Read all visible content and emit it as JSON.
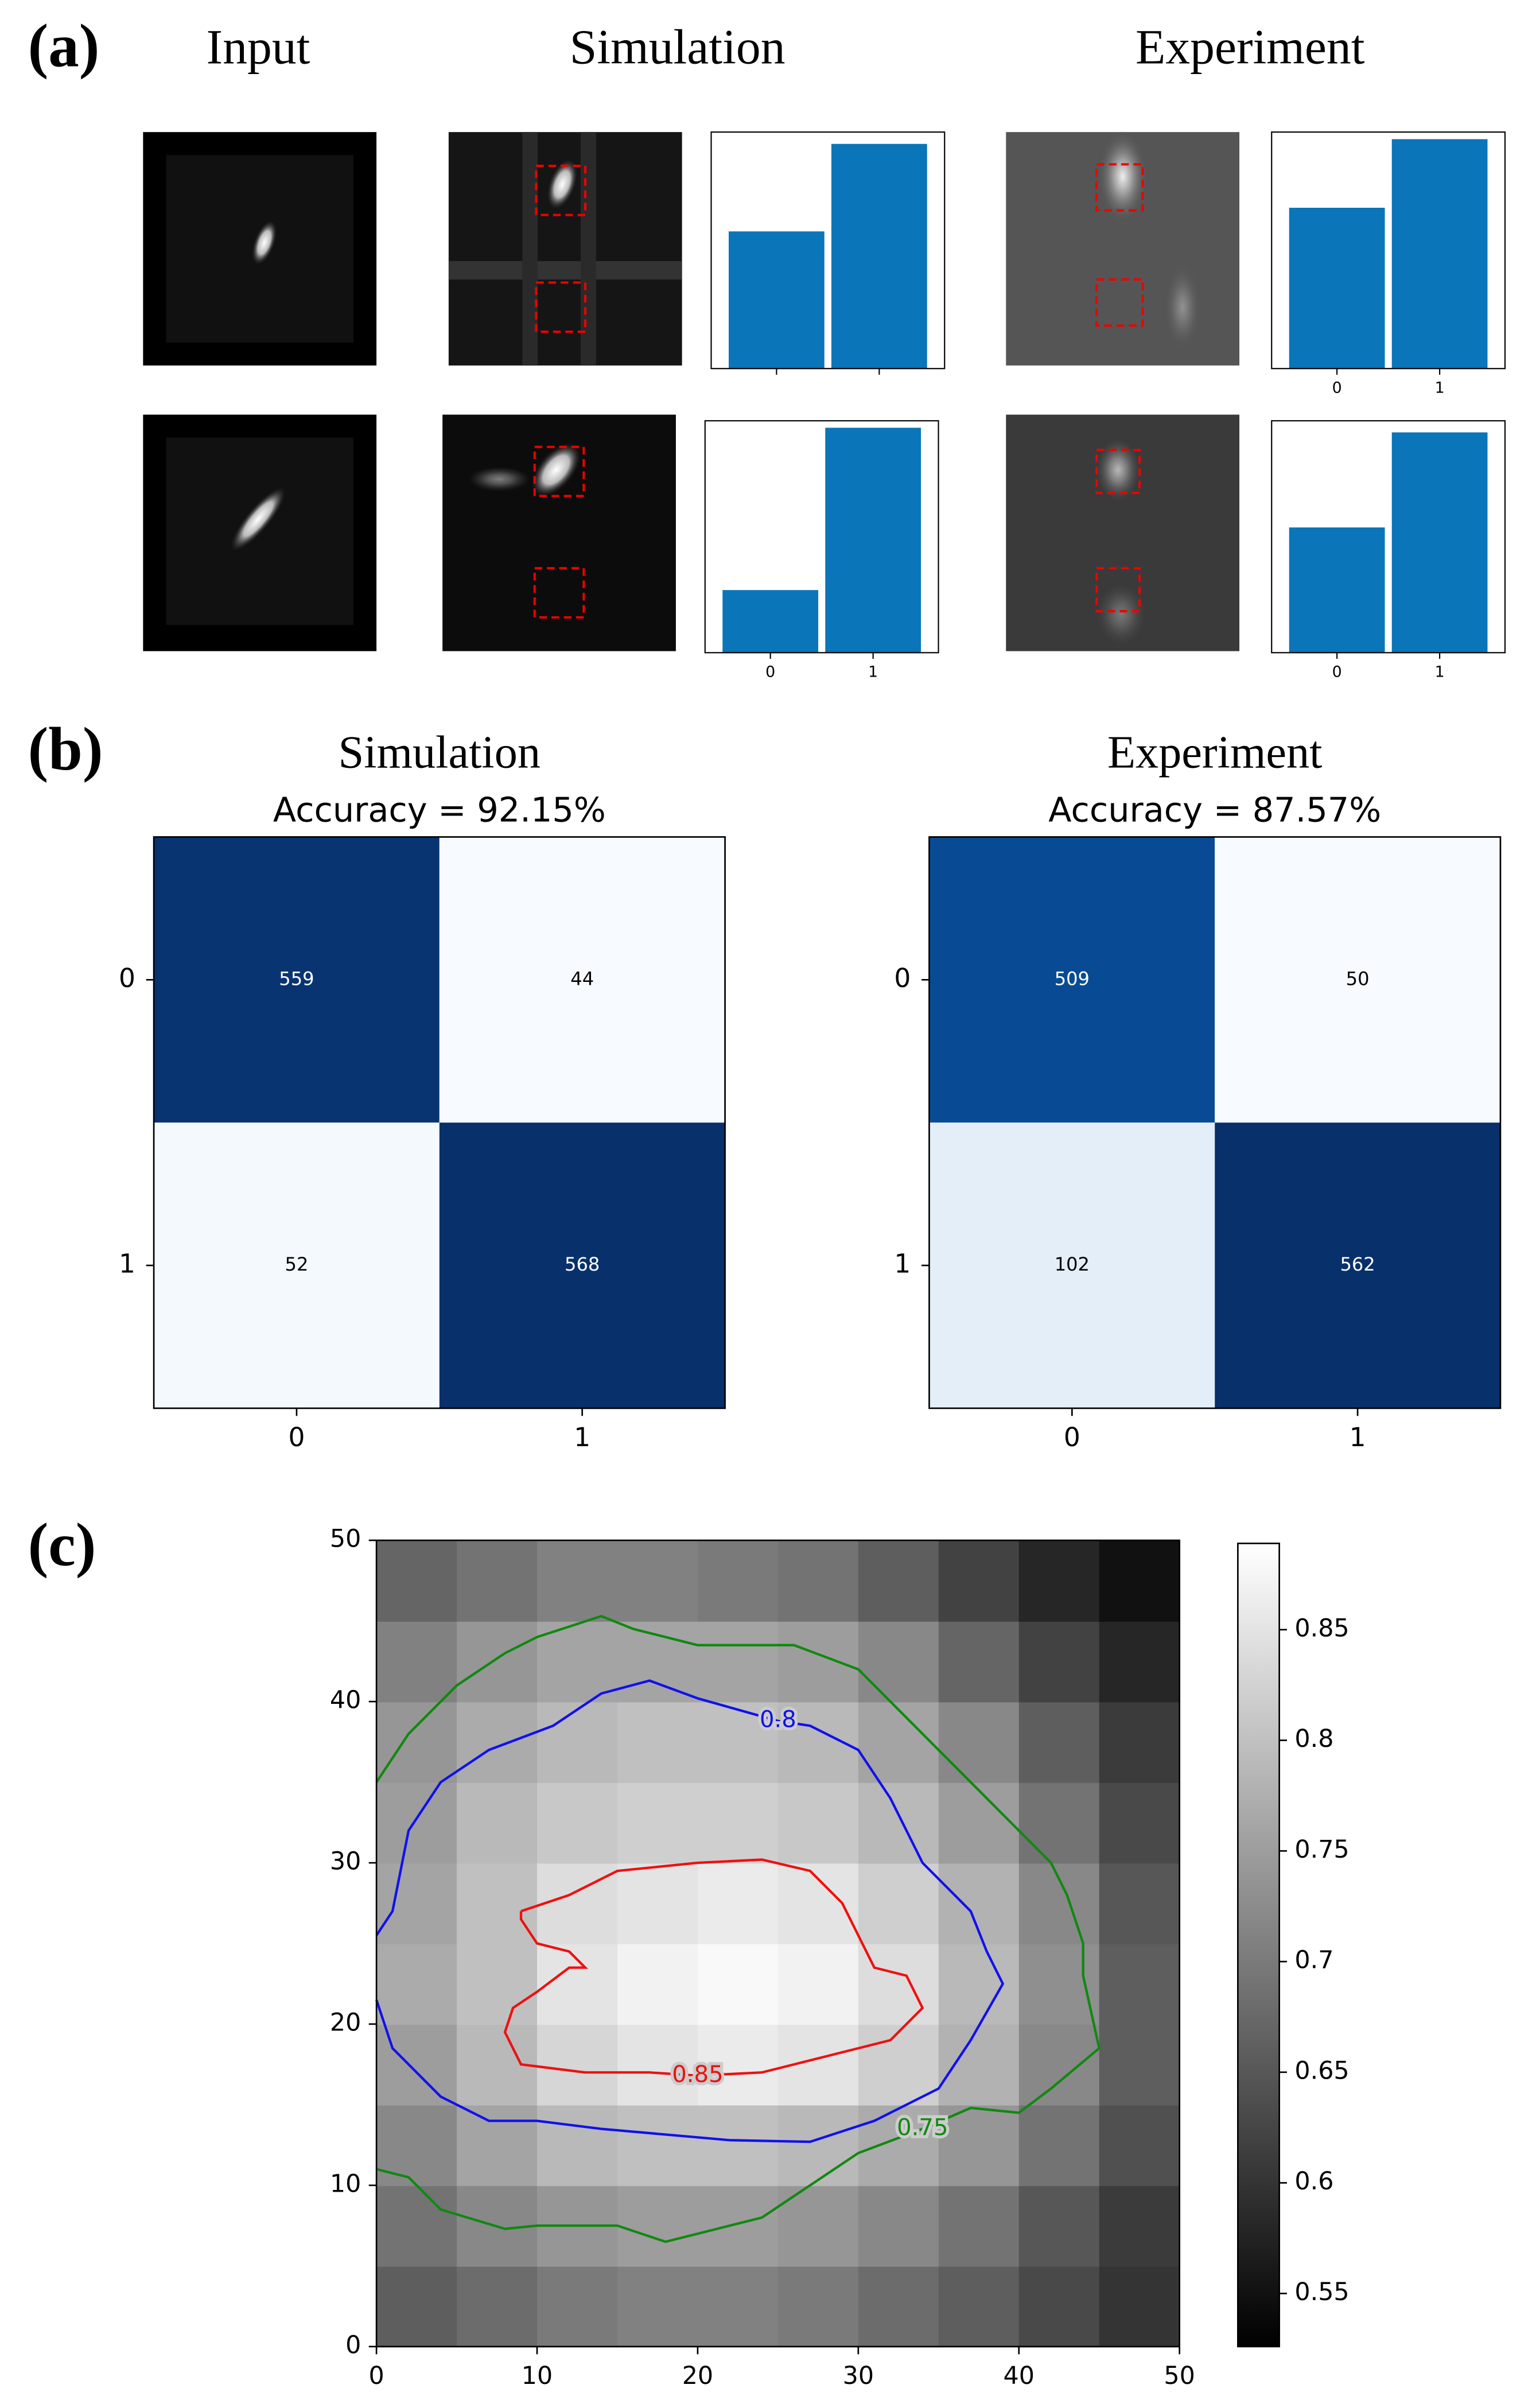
{
  "figure": {
    "panel_labels": [
      "(a)",
      "(b)",
      "(c)"
    ],
    "column_headers": [
      "Input",
      "Simulation",
      "Experiment"
    ]
  },
  "chart_data": [
    {
      "type": "bar",
      "categories": [
        null,
        null
      ],
      "values": [
        0.58,
        0.95
      ],
      "color": "#0a75b8",
      "ylim": [
        0,
        1
      ]
    },
    {
      "type": "bar",
      "categories": [
        "0",
        "1"
      ],
      "values": [
        0.68,
        0.97
      ],
      "color": "#0a75b8",
      "ylim": [
        0,
        1
      ]
    },
    {
      "type": "bar",
      "categories": [
        "0",
        "1"
      ],
      "values": [
        0.27,
        0.97
      ],
      "color": "#0a75b8",
      "ylim": [
        0,
        1
      ]
    },
    {
      "type": "bar",
      "categories": [
        "0",
        "1"
      ],
      "values": [
        0.54,
        0.95
      ],
      "color": "#0a75b8",
      "ylim": [
        0,
        1
      ]
    },
    {
      "type": "matrix",
      "title": "Simulation",
      "subtitle": "Accuracy = 92.15%",
      "x": [
        "0",
        "1"
      ],
      "y": [
        "0",
        "1"
      ],
      "z": [
        [
          559,
          44
        ],
        [
          52,
          568
        ]
      ],
      "colormap": [
        "#f7fbff",
        "#deebf7",
        "#c6dbef",
        "#9ecae1",
        "#6baed6",
        "#4292c6",
        "#2171b5",
        "#08519c",
        "#08306b"
      ]
    },
    {
      "type": "matrix",
      "title": "Experiment",
      "subtitle": "Accuracy = 87.57%",
      "x": [
        "0",
        "1"
      ],
      "y": [
        "0",
        "1"
      ],
      "z": [
        [
          509,
          50
        ],
        [
          102,
          562
        ]
      ],
      "colormap": [
        "#f7fbff",
        "#deebf7",
        "#c6dbef",
        "#9ecae1",
        "#6baed6",
        "#4292c6",
        "#2171b5",
        "#08519c",
        "#08306b"
      ]
    },
    {
      "type": "heatmap",
      "xlim": [
        0,
        50
      ],
      "ylim": [
        0,
        50
      ],
      "xticks": [
        0,
        10,
        20,
        30,
        40,
        50
      ],
      "yticks": [
        0,
        10,
        20,
        30,
        40,
        50
      ],
      "clim": [
        0.526,
        0.889
      ],
      "cticks": [
        0.55,
        0.6,
        0.65,
        0.7,
        0.75,
        0.8,
        0.85
      ],
      "z": [
        [
          0.66,
          0.68,
          0.7,
          0.71,
          0.71,
          0.7,
          0.68,
          0.66,
          0.63,
          0.6
        ],
        [
          0.69,
          0.72,
          0.74,
          0.75,
          0.75,
          0.74,
          0.72,
          0.69,
          0.65,
          0.61
        ],
        [
          0.72,
          0.76,
          0.79,
          0.8,
          0.8,
          0.79,
          0.77,
          0.74,
          0.69,
          0.64
        ],
        [
          0.75,
          0.79,
          0.83,
          0.85,
          0.86,
          0.85,
          0.82,
          0.78,
          0.72,
          0.66
        ],
        [
          0.77,
          0.8,
          0.85,
          0.87,
          0.88,
          0.87,
          0.84,
          0.79,
          0.73,
          0.66
        ],
        [
          0.76,
          0.8,
          0.84,
          0.85,
          0.86,
          0.85,
          0.82,
          0.78,
          0.72,
          0.65
        ],
        [
          0.75,
          0.79,
          0.81,
          0.82,
          0.82,
          0.81,
          0.79,
          0.75,
          0.69,
          0.63
        ],
        [
          0.74,
          0.77,
          0.79,
          0.8,
          0.8,
          0.79,
          0.76,
          0.72,
          0.66,
          0.61
        ],
        [
          0.71,
          0.74,
          0.76,
          0.76,
          0.76,
          0.75,
          0.72,
          0.67,
          0.62,
          0.58
        ],
        [
          0.67,
          0.69,
          0.71,
          0.71,
          0.7,
          0.69,
          0.66,
          0.62,
          0.58,
          0.55
        ]
      ],
      "contours": [
        {
          "level": 0.75,
          "color": "#118811",
          "x": [
            0,
            2,
            5,
            8,
            10,
            14,
            16,
            20,
            26,
            30,
            32,
            35,
            39,
            42,
            43,
            44,
            44,
            45,
            42,
            40,
            37,
            34,
            30,
            27,
            24,
            20,
            18,
            15,
            10,
            8,
            4,
            2,
            0
          ],
          "y": [
            35,
            38,
            41,
            43,
            44,
            45.3,
            44.5,
            43.5,
            43.5,
            42,
            40,
            37,
            33,
            30,
            28,
            25,
            23,
            18.5,
            16,
            14.5,
            14.8,
            13.5,
            12,
            10,
            8,
            7,
            6.5,
            7.5,
            7.5,
            7.3,
            8.5,
            10.5,
            11
          ]
        },
        {
          "level": 0.8,
          "color": "#1010ee",
          "x": [
            0,
            1,
            2,
            4,
            7,
            11,
            14,
            17,
            20,
            25,
            27,
            30,
            32,
            34,
            37,
            38,
            39,
            37,
            35,
            31,
            27,
            22,
            14,
            10,
            7,
            4,
            1,
            0
          ],
          "y": [
            25.5,
            27,
            32,
            35,
            37,
            38.5,
            40.5,
            41.3,
            40.2,
            38.8,
            38.5,
            37,
            34,
            30,
            27,
            24.5,
            22.5,
            19,
            16,
            14,
            12.7,
            12.8,
            13.5,
            14,
            14,
            15.5,
            18.5,
            21.5
          ]
        },
        {
          "level": 0.85,
          "color": "#ee1010",
          "x": [
            9,
            12,
            15,
            20,
            24,
            27,
            29,
            30,
            31,
            33,
            34,
            32,
            28,
            24,
            20,
            17,
            13,
            9,
            8,
            8.5,
            10,
            12,
            13,
            12,
            10,
            9,
            9
          ],
          "y": [
            27,
            28,
            29.5,
            30,
            30.2,
            29.5,
            27.5,
            25.5,
            23.5,
            23,
            21,
            19,
            18,
            17,
            16.8,
            17,
            17,
            17.5,
            19.5,
            21,
            22,
            23.5,
            23.5,
            24.5,
            25,
            26.5,
            27
          ]
        }
      ]
    }
  ]
}
